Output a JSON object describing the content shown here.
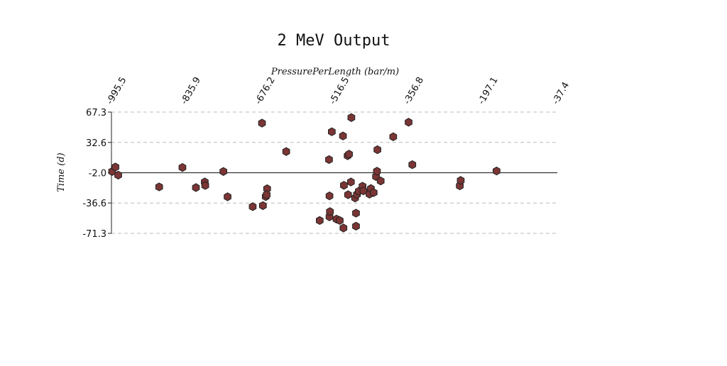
{
  "chart_data": {
    "type": "scatter",
    "title": "2 MeV Output",
    "xlabel": "PressurePerLength (bar/m)",
    "ylabel": "Time (d)",
    "x_axis_position": "top",
    "x_ticks": [
      "-995.5",
      "-835.9",
      "-676.2",
      "-516.5",
      "-356.8",
      "-197.1",
      "-37.4"
    ],
    "y_ticks": [
      "67.3",
      "32.6",
      "-2.0",
      "-36.6",
      "-71.3"
    ],
    "xlim": [
      -995.5,
      -37.4
    ],
    "ylim": [
      -71.3,
      67.3
    ],
    "grid": "horizontal dashed at y ticks",
    "zero_line": -2.0,
    "marker": "hexagon",
    "marker_color": "#7b3535",
    "marker_edge_color": "#222222",
    "points": [
      {
        "x": -994,
        "y": -0.6
      },
      {
        "x": -987,
        "y": 4.5
      },
      {
        "x": -981,
        "y": -4.8
      },
      {
        "x": -893,
        "y": -18.2
      },
      {
        "x": -843,
        "y": 4.0
      },
      {
        "x": -814,
        "y": -19.0
      },
      {
        "x": -795,
        "y": -12.6
      },
      {
        "x": -794,
        "y": -16.6
      },
      {
        "x": -755,
        "y": -0.6
      },
      {
        "x": -746,
        "y": -29.5
      },
      {
        "x": -692,
        "y": -40.8
      },
      {
        "x": -672,
        "y": 54.7
      },
      {
        "x": -670,
        "y": -39.6
      },
      {
        "x": -664,
        "y": -29.3
      },
      {
        "x": -661,
        "y": -20.3
      },
      {
        "x": -662,
        "y": -27.2
      },
      {
        "x": -620,
        "y": 22.2
      },
      {
        "x": -548,
        "y": -56.6
      },
      {
        "x": -528,
        "y": 13.0
      },
      {
        "x": -527,
        "y": -28.5
      },
      {
        "x": -527,
        "y": -52.4
      },
      {
        "x": -526,
        "y": -46.4
      },
      {
        "x": -522,
        "y": 44.8
      },
      {
        "x": -512,
        "y": -55.0
      },
      {
        "x": -505,
        "y": -56.6
      },
      {
        "x": -498,
        "y": 40.0
      },
      {
        "x": -497,
        "y": -65.2
      },
      {
        "x": -496,
        "y": -16.4
      },
      {
        "x": -488,
        "y": 17.4
      },
      {
        "x": -487,
        "y": -27.2
      },
      {
        "x": -485,
        "y": 19.2
      },
      {
        "x": -480,
        "y": 61.0
      },
      {
        "x": -481,
        "y": -12.6
      },
      {
        "x": -472,
        "y": -30.8
      },
      {
        "x": -470,
        "y": -63.1
      },
      {
        "x": -470,
        "y": -48.2
      },
      {
        "x": -468,
        "y": -26.8
      },
      {
        "x": -464,
        "y": -23.1
      },
      {
        "x": -456,
        "y": -17.4
      },
      {
        "x": -454,
        "y": -22.7
      },
      {
        "x": -441,
        "y": -26.5
      },
      {
        "x": -438,
        "y": -20.1
      },
      {
        "x": -432,
        "y": -24.7
      },
      {
        "x": -427,
        "y": -6.4
      },
      {
        "x": -425,
        "y": -0.3
      },
      {
        "x": -424,
        "y": 24.3
      },
      {
        "x": -417,
        "y": -11.4
      },
      {
        "x": -390,
        "y": 39.1
      },
      {
        "x": -357,
        "y": 55.7
      },
      {
        "x": -349,
        "y": 7.2
      },
      {
        "x": -247,
        "y": -17.0
      },
      {
        "x": -245,
        "y": -10.8
      },
      {
        "x": -168,
        "y": 0.0
      }
    ]
  }
}
